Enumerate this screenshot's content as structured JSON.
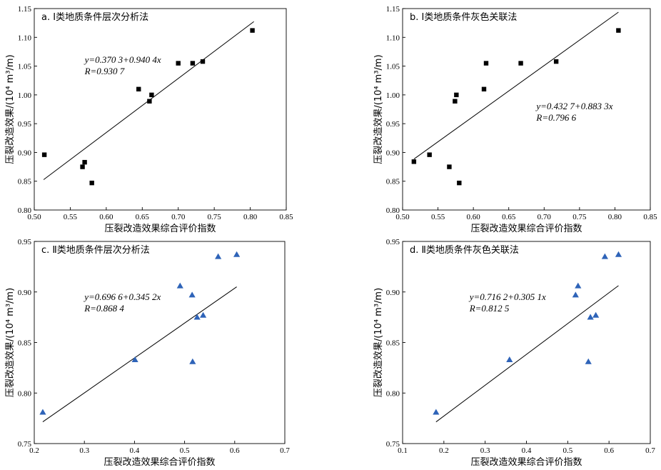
{
  "chart_data": [
    {
      "type": "scatter",
      "title": "a. Ⅰ类地质条件层次分析法",
      "xlabel": "压裂改造效果综合评价指数",
      "ylabel": "压裂改造效果/(10⁴ m³/m)",
      "xlim": [
        0.5,
        0.85
      ],
      "ylim": [
        0.8,
        1.15
      ],
      "xticks": [
        "0.50",
        "0.55",
        "0.60",
        "0.65",
        "0.70",
        "0.75",
        "0.80",
        "0.85"
      ],
      "yticks": [
        "0.80",
        "0.85",
        "0.90",
        "0.95",
        "1.00",
        "1.05",
        "1.10",
        "1.15"
      ],
      "marker": "square",
      "marker_color": "#000000",
      "points": [
        {
          "x": 0.514,
          "y": 0.896
        },
        {
          "x": 0.567,
          "y": 0.875
        },
        {
          "x": 0.57,
          "y": 0.883
        },
        {
          "x": 0.58,
          "y": 0.847
        },
        {
          "x": 0.645,
          "y": 1.01
        },
        {
          "x": 0.66,
          "y": 0.989
        },
        {
          "x": 0.663,
          "y": 1.0
        },
        {
          "x": 0.7,
          "y": 1.055
        },
        {
          "x": 0.72,
          "y": 1.055
        },
        {
          "x": 0.734,
          "y": 1.058
        },
        {
          "x": 0.803,
          "y": 1.112
        }
      ],
      "fit_line": {
        "intercept": 0.3703,
        "slope": 0.9404,
        "x_range": [
          0.513,
          0.805
        ]
      },
      "equation": "y=0.370 3+0.940 4x",
      "r_text": "R=0.930 7",
      "grid": false
    },
    {
      "type": "scatter",
      "title": "b. Ⅰ类地质条件灰色关联法",
      "xlabel": "压裂改造效果综合评价指数",
      "ylabel": "压裂改造效果/(10⁴ m³/m)",
      "xlim": [
        0.5,
        0.85
      ],
      "ylim": [
        0.8,
        1.15
      ],
      "xticks": [
        "0.50",
        "0.55",
        "0.60",
        "0.65",
        "0.70",
        "0.75",
        "0.80",
        "0.85"
      ],
      "yticks": [
        "0.80",
        "0.85",
        "0.90",
        "0.95",
        "1.00",
        "1.05",
        "1.10",
        "1.15"
      ],
      "marker": "square",
      "marker_color": "#000000",
      "points": [
        {
          "x": 0.516,
          "y": 0.884
        },
        {
          "x": 0.538,
          "y": 0.896
        },
        {
          "x": 0.566,
          "y": 0.875
        },
        {
          "x": 0.574,
          "y": 0.989
        },
        {
          "x": 0.576,
          "y": 1.0
        },
        {
          "x": 0.58,
          "y": 0.847
        },
        {
          "x": 0.615,
          "y": 1.01
        },
        {
          "x": 0.618,
          "y": 1.055
        },
        {
          "x": 0.667,
          "y": 1.055
        },
        {
          "x": 0.717,
          "y": 1.058
        },
        {
          "x": 0.805,
          "y": 1.112
        }
      ],
      "fit_line": {
        "intercept": 0.4327,
        "slope": 0.8833,
        "x_range": [
          0.516,
          0.805
        ]
      },
      "equation": "y=0.432 7+0.883 3x",
      "r_text": "R=0.796 6",
      "grid": false
    },
    {
      "type": "scatter",
      "title": "c. Ⅱ类地质条件层次分析法",
      "xlabel": "压裂改造效果综合评价指数",
      "ylabel": "压裂改造效果/(10⁴ m³/m)",
      "xlim": [
        0.2,
        0.7
      ],
      "ylim": [
        0.75,
        0.95
      ],
      "xticks": [
        "0.2",
        "0.3",
        "0.4",
        "0.5",
        "0.6",
        "0.7"
      ],
      "yticks": [
        "0.75",
        "0.80",
        "0.85",
        "0.90",
        "0.95"
      ],
      "marker": "triangle",
      "marker_color": "#2e63b8",
      "points": [
        {
          "x": 0.217,
          "y": 0.781
        },
        {
          "x": 0.401,
          "y": 0.833
        },
        {
          "x": 0.491,
          "y": 0.906
        },
        {
          "x": 0.515,
          "y": 0.897
        },
        {
          "x": 0.516,
          "y": 0.831
        },
        {
          "x": 0.525,
          "y": 0.875
        },
        {
          "x": 0.537,
          "y": 0.877
        },
        {
          "x": 0.567,
          "y": 0.935
        },
        {
          "x": 0.604,
          "y": 0.937
        }
      ],
      "fit_line": {
        "intercept": 0.6966,
        "slope": 0.3452,
        "x_range": [
          0.217,
          0.604
        ]
      },
      "equation": "y=0.696 6+0.345 2x",
      "r_text": "R=0.868 4",
      "grid": false
    },
    {
      "type": "scatter",
      "title": "d. Ⅱ类地质条件灰色关联法",
      "xlabel": "压裂改造效果综合评价指数",
      "ylabel": "压裂改造效果/(10⁴ m³/m)",
      "xlim": [
        0.1,
        0.7
      ],
      "ylim": [
        0.75,
        0.95
      ],
      "xticks": [
        "0.1",
        "0.2",
        "0.3",
        "0.4",
        "0.5",
        "0.6",
        "0.7"
      ],
      "yticks": [
        "0.75",
        "0.80",
        "0.85",
        "0.90",
        "0.95"
      ],
      "marker": "triangle",
      "marker_color": "#2e63b8",
      "points": [
        {
          "x": 0.181,
          "y": 0.781
        },
        {
          "x": 0.359,
          "y": 0.833
        },
        {
          "x": 0.519,
          "y": 0.897
        },
        {
          "x": 0.525,
          "y": 0.906
        },
        {
          "x": 0.55,
          "y": 0.831
        },
        {
          "x": 0.555,
          "y": 0.875
        },
        {
          "x": 0.568,
          "y": 0.877
        },
        {
          "x": 0.59,
          "y": 0.935
        },
        {
          "x": 0.623,
          "y": 0.937
        }
      ],
      "fit_line": {
        "intercept": 0.7162,
        "slope": 0.3051,
        "x_range": [
          0.181,
          0.623
        ]
      },
      "equation": "y=0.716 2+0.305 1x",
      "r_text": "R=0.812 5",
      "grid": false
    }
  ]
}
